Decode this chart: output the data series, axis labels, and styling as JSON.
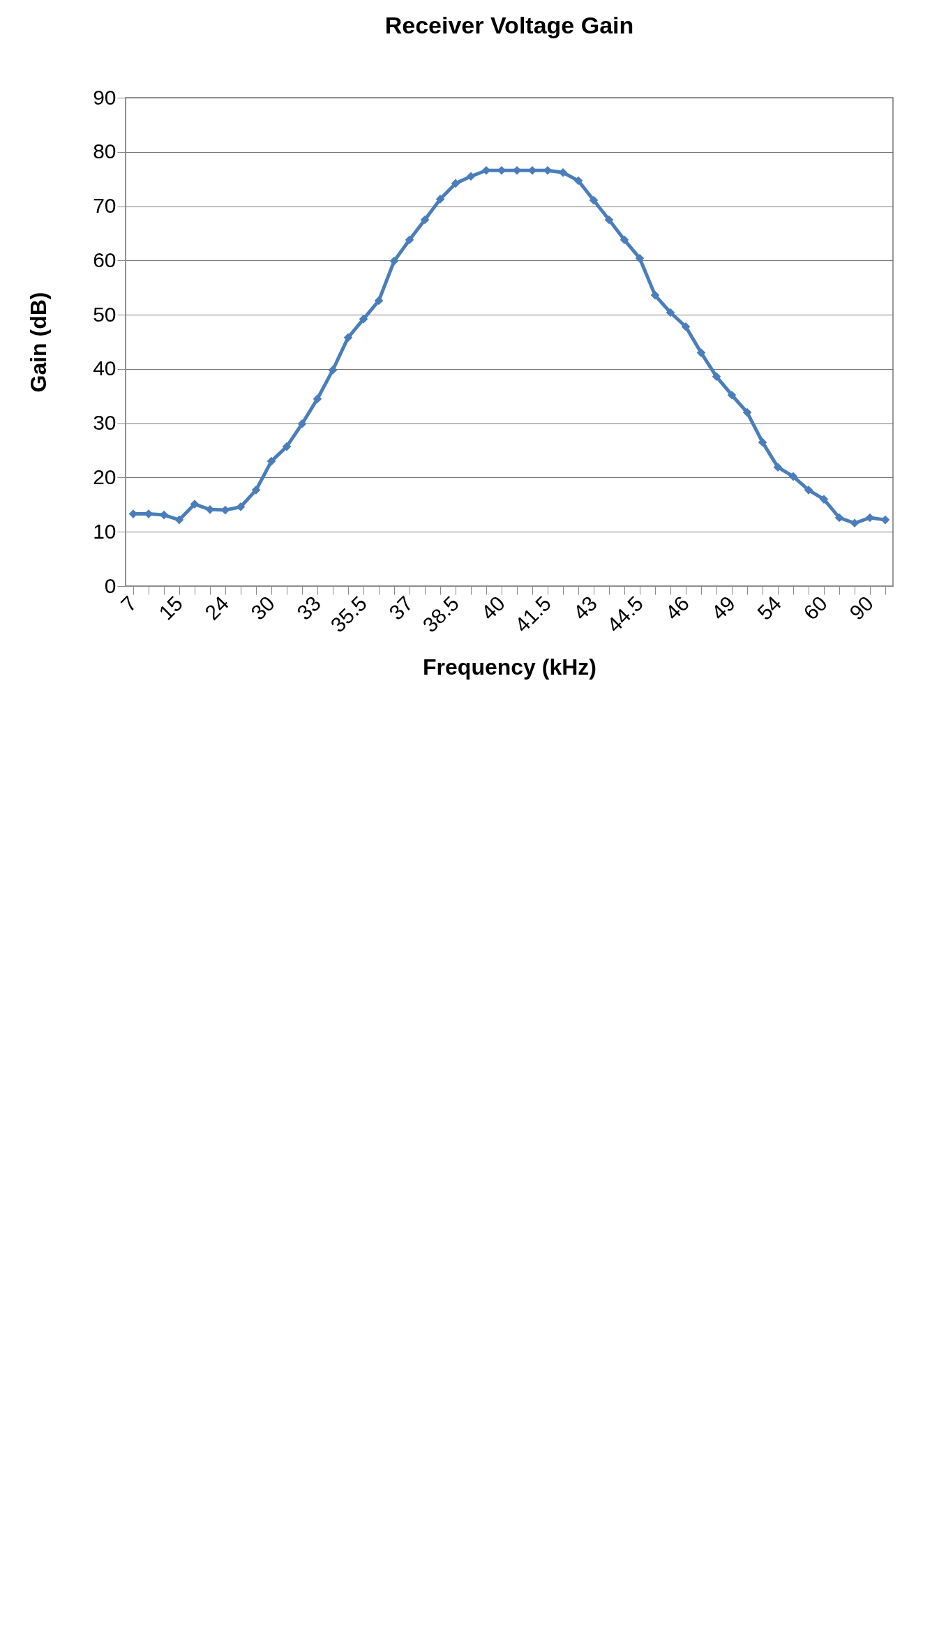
{
  "chart_data": {
    "type": "line",
    "title": "Receiver Voltage Gain",
    "xlabel": "Frequency (kHz)",
    "ylabel": "Gain (dB)",
    "categories": [
      "7",
      null,
      null,
      "15",
      null,
      null,
      "24",
      null,
      null,
      "30",
      null,
      null,
      "33",
      null,
      null,
      "35.5",
      null,
      null,
      "37",
      null,
      null,
      "38.5",
      null,
      null,
      "40",
      null,
      null,
      "41.5",
      null,
      null,
      "43",
      null,
      null,
      "44.5",
      null,
      null,
      "46",
      null,
      null,
      "49",
      null,
      null,
      "54",
      null,
      null,
      "60",
      null,
      null,
      "90",
      null
    ],
    "series": [
      {
        "color": "#4a7ebb",
        "values": [
          13.3,
          13.3,
          13.1,
          12.2,
          15.1,
          14.1,
          14,
          14.6,
          17.7,
          23,
          25.7,
          29.9,
          34.5,
          39.8,
          45.8,
          49.2,
          52.6,
          59.9,
          63.8,
          67.5,
          71.3,
          74.2,
          75.5,
          76.6,
          76.6,
          76.6,
          76.6,
          76.6,
          76.2,
          74.7,
          71.1,
          67.5,
          63.8,
          60.4,
          53.6,
          50.4,
          47.8,
          43,
          38.6,
          35.2,
          32,
          26.5,
          21.9,
          20.2,
          17.7,
          16,
          12.6,
          11.6,
          12.6,
          12.2
        ]
      }
    ],
    "ylim": [
      0,
      90
    ],
    "yticks": [
      0,
      10,
      20,
      30,
      40,
      50,
      60,
      70,
      80,
      90
    ],
    "grid": "y",
    "marker": "diamond"
  }
}
